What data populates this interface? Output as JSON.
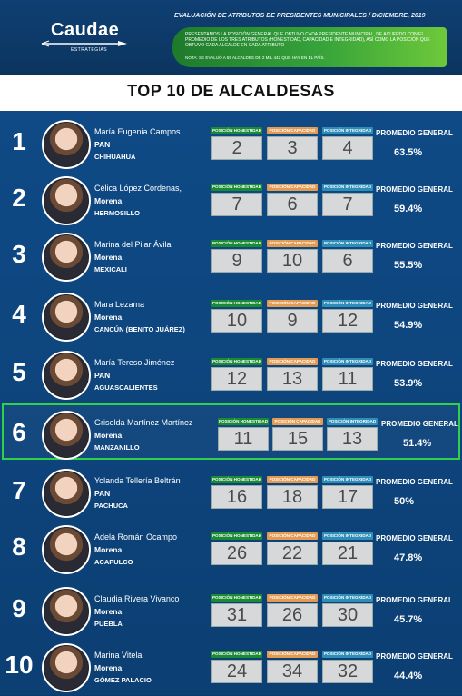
{
  "header": {
    "logo": {
      "brand": "Caudae",
      "sub": "ESTRATEGIAS"
    },
    "title": "EVALUACIÓN DE ATRIBUTOS DE PRESIDENTES MUNICIPALES / DICIEMBRE, 2019",
    "description": "PRESENTAMOS LA POSICIÓN GENERAL QUE OBTUVO CADA PRESIDENTE MUNICIPAL, DE ACUERDO CON EL PROMEDIO DE LOS TRES ATRIBUTOS (HONESTIDAD, CAPACIDAD E INTEGRIDAD), ASÍ COMO LA POSICIÓN QUE OBTUVO CADA ALCALDE EN CADA ATRIBUTO",
    "note": "NOTA: SE EVALUÓ A 55 ALCALDES DE 2 MIL 442 QUE HAY EN EL PAÍS."
  },
  "page_title": "TOP 10 DE ALCALDESAS",
  "labels": {
    "honestidad": "POSICIÓN HONESTIDAD",
    "capacidad": "POSICIÓN CAPACIDAD",
    "integridad": "POSICIÓN INTEGRIDAD",
    "promedio": "PROMEDIO GENERAL"
  },
  "rows": [
    {
      "rank": "1",
      "name": "María Eugenia Campos",
      "party": "PAN",
      "city": "CHIHUAHUA",
      "hon": "2",
      "cap": "3",
      "int": "4",
      "avg": "63.5%"
    },
    {
      "rank": "2",
      "name": "Célica López Cordenas,",
      "party": "Morena",
      "city": "HERMOSILLO",
      "hon": "7",
      "cap": "6",
      "int": "7",
      "avg": "59.4%"
    },
    {
      "rank": "3",
      "name": "Marina del Pilar Ávila",
      "party": "Morena",
      "city": "MEXICALI",
      "hon": "9",
      "cap": "10",
      "int": "6",
      "avg": "55.5%"
    },
    {
      "rank": "4",
      "name": "Mara Lezama",
      "party": "Morena",
      "city": "CANCÚN (BENITO JUÁREZ)",
      "hon": "10",
      "cap": "9",
      "int": "12",
      "avg": "54.9%"
    },
    {
      "rank": "5",
      "name": "María Tereso Jiménez",
      "party": "PAN",
      "city": "AGUASCALIENTES",
      "hon": "12",
      "cap": "13",
      "int": "11",
      "avg": "53.9%"
    },
    {
      "rank": "6",
      "name": "Griselda Martínez Martínez",
      "party": "Morena",
      "city": "MANZANILLO",
      "hon": "11",
      "cap": "15",
      "int": "13",
      "avg": "51.4%"
    },
    {
      "rank": "7",
      "name": "Yolanda Tellería Beltrán",
      "party": "PAN",
      "city": "PACHUCA",
      "hon": "16",
      "cap": "18",
      "int": "17",
      "avg": "50%"
    },
    {
      "rank": "8",
      "name": "Adela Román Ocampo",
      "party": "Morena",
      "city": "ACAPULCO",
      "hon": "26",
      "cap": "22",
      "int": "21",
      "avg": "47.8%"
    },
    {
      "rank": "9",
      "name": "Claudia Rivera Vivanco",
      "party": "Morena",
      "city": "PUEBLA",
      "hon": "31",
      "cap": "26",
      "int": "30",
      "avg": "45.7%"
    },
    {
      "rank": "10",
      "name": "Marina Vitela",
      "party": "Morena",
      "city": "GÓMEZ PALACIO",
      "hon": "24",
      "cap": "34",
      "int": "32",
      "avg": "44.4%"
    }
  ],
  "colors": {
    "honestidad": "#1a8a34",
    "capacidad": "#e39a52",
    "integridad": "#2f8eb8",
    "highlight": "#2fd14a"
  },
  "highlighted_rank": "6"
}
